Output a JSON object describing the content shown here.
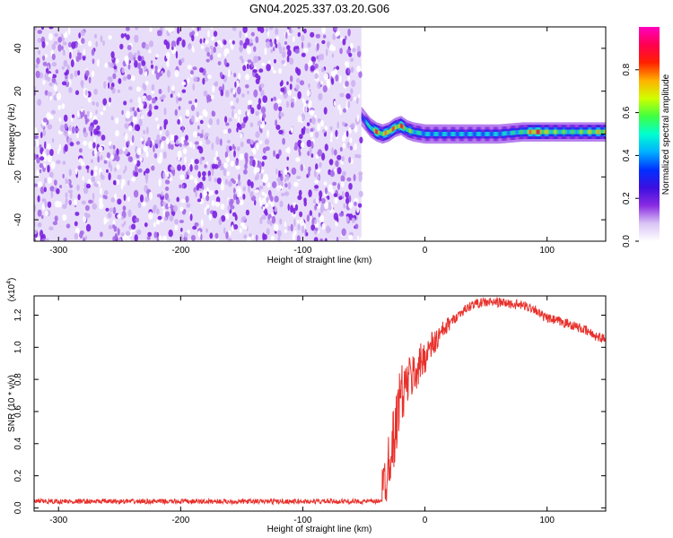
{
  "title": "GN04.2025.337.03.20.G06",
  "chart_data": [
    {
      "type": "heatmap",
      "xlabel": "Height of straight line (km)",
      "ylabel": "Frequency (Hz)",
      "xlim": [
        -320,
        148
      ],
      "ylim": [
        -50,
        50
      ],
      "xticks": [
        -300,
        -200,
        -100,
        0,
        100
      ],
      "xtick_labels": [
        "-300",
        "-200",
        "-100",
        "0",
        "100"
      ],
      "yticks": [
        -40,
        -20,
        0,
        20,
        40
      ],
      "ytick_labels": [
        "-40",
        "-20",
        "0",
        "20",
        "40"
      ],
      "noise_region": {
        "x_range": [
          -320,
          -52
        ],
        "y_range": [
          -50,
          50
        ],
        "level": "low (0.1-0.3)"
      },
      "signal_band": {
        "x": [
          -52,
          -45,
          -40,
          -35,
          -30,
          -25,
          -20,
          -15,
          -10,
          0,
          20,
          40,
          60,
          80,
          90,
          100,
          120,
          148
        ],
        "y": [
          8,
          3,
          1,
          0,
          1,
          3,
          4,
          2,
          1,
          0,
          0,
          0,
          0,
          1,
          1,
          1,
          1,
          1
        ],
        "amplitude": [
          0.4,
          0.6,
          0.9,
          0.7,
          0.9,
          0.8,
          0.9,
          0.7,
          0.6,
          0.5,
          0.5,
          0.5,
          0.5,
          0.6,
          0.95,
          0.7,
          0.6,
          0.8
        ],
        "width_hz": 6
      },
      "colorbar": {
        "label": "Normalized spectral amplitude",
        "range": [
          0,
          1
        ],
        "ticks": [
          0.0,
          0.2,
          0.4,
          0.6,
          0.8
        ],
        "tick_labels": [
          "0.0",
          "0.2",
          "0.4",
          "0.6",
          "0.8"
        ],
        "colors": [
          "#ffffff",
          "#d9c4f5",
          "#8a2be2",
          "#3b0fe0",
          "#0030ff",
          "#00b0ff",
          "#00ffd0",
          "#40ff40",
          "#d0ff00",
          "#ffb000",
          "#ff2000",
          "#ff0050",
          "#ff00c0"
        ]
      },
      "grid": false
    },
    {
      "type": "line",
      "xlabel": "Height of straight line (km)",
      "ylabel": "SNR (10 * v/v)",
      "y_scale_label": "(x10",
      "y_scale_exp": "4",
      "y_scale_close": ")",
      "xlim": [
        -320,
        148
      ],
      "ylim": [
        -0.02,
        1.32
      ],
      "xticks": [
        -300,
        -200,
        -100,
        0,
        100
      ],
      "xtick_labels": [
        "-300",
        "-200",
        "-100",
        "0",
        "100"
      ],
      "yticks": [
        0.0,
        0.2,
        0.4,
        0.6,
        0.8,
        1.0,
        1.2
      ],
      "ytick_labels": [
        "0.0",
        "0.2",
        "0.4",
        "0.6",
        "0.8",
        "1.0",
        "1.2"
      ],
      "series": [
        {
          "color": "#e8312c",
          "x": [
            -320,
            -300,
            -250,
            -200,
            -150,
            -100,
            -60,
            -40,
            -35,
            -33,
            -30,
            -28,
            -25,
            -22,
            -20,
            -18,
            -15,
            -10,
            -5,
            0,
            10,
            20,
            30,
            40,
            50,
            60,
            70,
            80,
            90,
            95,
            100,
            110,
            120,
            130,
            140,
            148
          ],
          "y": [
            0.04,
            0.04,
            0.04,
            0.04,
            0.04,
            0.04,
            0.04,
            0.04,
            0.05,
            0.15,
            0.3,
            0.38,
            0.45,
            0.6,
            0.75,
            0.7,
            0.78,
            0.82,
            0.88,
            0.95,
            1.05,
            1.15,
            1.22,
            1.27,
            1.28,
            1.28,
            1.27,
            1.26,
            1.24,
            1.2,
            1.18,
            1.16,
            1.14,
            1.11,
            1.07,
            1.05
          ]
        }
      ],
      "grid": false
    }
  ]
}
